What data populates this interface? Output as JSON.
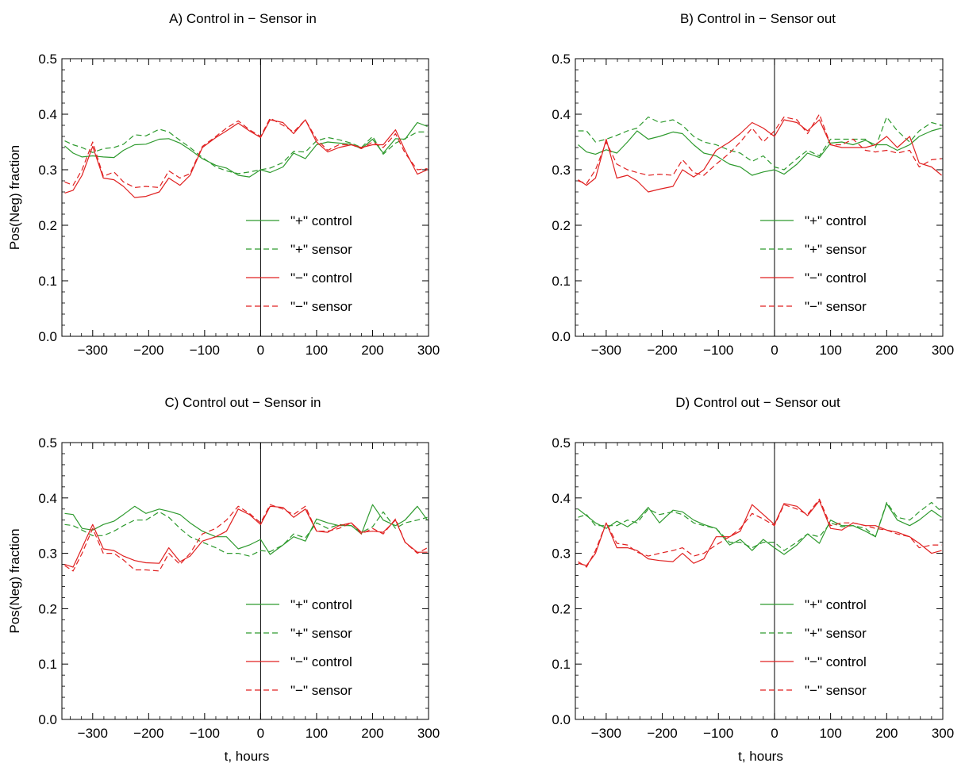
{
  "chart_data": [
    {
      "type": "line",
      "title": "A) Control in − Sensor in",
      "xlabel": "",
      "ylabel": "Pos(Neg) fraction",
      "xlim": [
        -355,
        300
      ],
      "ylim": [
        0,
        0.5
      ],
      "xticks": [
        -300,
        -200,
        -100,
        0,
        100,
        200,
        300
      ],
      "xtick_labels": [
        "−300",
        "−200",
        "−100",
        "0",
        "100",
        "200",
        "300"
      ],
      "yticks": [
        0,
        0.1,
        0.2,
        0.3,
        0.4,
        0.5
      ],
      "ytick_labels": [
        "0.0",
        "0.1",
        "0.2",
        "0.3",
        "0.4",
        "0.5"
      ],
      "vline_x": 0,
      "legend_position": "lower-right",
      "x": [
        -350,
        -335,
        -319,
        -300,
        -281,
        -262,
        -245,
        -225,
        -205,
        -181,
        -164,
        -144,
        -126,
        -104,
        -80,
        -61,
        -40,
        -20,
        0,
        17,
        40,
        59,
        80,
        100,
        120,
        140,
        162,
        180,
        200,
        219,
        241,
        258,
        280,
        298
      ],
      "series": [
        {
          "name": "\"+\" control",
          "color": "#2e9a2e",
          "dash": "solid",
          "values": [
            0.343,
            0.33,
            0.323,
            0.325,
            0.323,
            0.322,
            0.335,
            0.345,
            0.346,
            0.355,
            0.356,
            0.348,
            0.336,
            0.32,
            0.308,
            0.303,
            0.29,
            0.287,
            0.3,
            0.295,
            0.305,
            0.33,
            0.32,
            0.345,
            0.35,
            0.348,
            0.346,
            0.338,
            0.355,
            0.33,
            0.356,
            0.355,
            0.385,
            0.378
          ]
        },
        {
          "name": "\"+\" sensor",
          "color": "#2e9a2e",
          "dash": "dashed",
          "values": [
            0.352,
            0.345,
            0.34,
            0.331,
            0.338,
            0.34,
            0.346,
            0.363,
            0.361,
            0.373,
            0.368,
            0.353,
            0.34,
            0.322,
            0.305,
            0.298,
            0.293,
            0.296,
            0.3,
            0.303,
            0.313,
            0.333,
            0.332,
            0.352,
            0.358,
            0.354,
            0.348,
            0.34,
            0.36,
            0.328,
            0.348,
            0.356,
            0.368,
            0.368
          ]
        },
        {
          "name": "\"−\" control",
          "color": "#e02020",
          "dash": "solid",
          "values": [
            0.258,
            0.263,
            0.29,
            0.342,
            0.285,
            0.282,
            0.27,
            0.25,
            0.252,
            0.26,
            0.285,
            0.272,
            0.29,
            0.34,
            0.358,
            0.37,
            0.384,
            0.37,
            0.358,
            0.39,
            0.385,
            0.365,
            0.39,
            0.35,
            0.332,
            0.34,
            0.345,
            0.34,
            0.345,
            0.345,
            0.372,
            0.335,
            0.292,
            0.3
          ]
        },
        {
          "name": "\"−\" sensor",
          "color": "#e02020",
          "dash": "dashed",
          "values": [
            0.278,
            0.272,
            0.3,
            0.35,
            0.288,
            0.296,
            0.278,
            0.268,
            0.27,
            0.268,
            0.298,
            0.285,
            0.293,
            0.342,
            0.36,
            0.375,
            0.388,
            0.372,
            0.36,
            0.393,
            0.38,
            0.368,
            0.39,
            0.355,
            0.335,
            0.345,
            0.345,
            0.338,
            0.35,
            0.34,
            0.365,
            0.33,
            0.3,
            0.302
          ]
        }
      ]
    },
    {
      "type": "line",
      "title": "B) Control in − Sensor out",
      "xlabel": "",
      "ylabel": "",
      "xlim": [
        -355,
        300
      ],
      "ylim": [
        0,
        0.5
      ],
      "xticks": [
        -300,
        -200,
        -100,
        0,
        100,
        200,
        300
      ],
      "xtick_labels": [
        "−300",
        "−200",
        "−100",
        "0",
        "100",
        "200",
        "300"
      ],
      "yticks": [
        0,
        0.1,
        0.2,
        0.3,
        0.4,
        0.5
      ],
      "ytick_labels": [
        "0.0",
        "0.1",
        "0.2",
        "0.3",
        "0.4",
        "0.5"
      ],
      "vline_x": 0,
      "legend_position": "lower-right",
      "x": [
        -350,
        -335,
        -319,
        -300,
        -281,
        -262,
        -245,
        -225,
        -205,
        -181,
        -164,
        -144,
        -126,
        -104,
        -80,
        -61,
        -40,
        -20,
        0,
        17,
        40,
        59,
        80,
        100,
        120,
        140,
        162,
        180,
        200,
        219,
        241,
        258,
        280,
        298
      ],
      "series": [
        {
          "name": "\"+\" control",
          "color": "#2e9a2e",
          "dash": "solid",
          "values": [
            0.345,
            0.332,
            0.328,
            0.336,
            0.33,
            0.35,
            0.37,
            0.355,
            0.36,
            0.368,
            0.365,
            0.345,
            0.33,
            0.325,
            0.31,
            0.305,
            0.29,
            0.296,
            0.3,
            0.292,
            0.31,
            0.33,
            0.322,
            0.348,
            0.35,
            0.345,
            0.353,
            0.345,
            0.345,
            0.335,
            0.345,
            0.36,
            0.37,
            0.375
          ]
        },
        {
          "name": "\"+\" sensor",
          "color": "#2e9a2e",
          "dash": "dashed",
          "values": [
            0.37,
            0.37,
            0.35,
            0.355,
            0.362,
            0.37,
            0.375,
            0.395,
            0.385,
            0.39,
            0.38,
            0.36,
            0.35,
            0.345,
            0.335,
            0.33,
            0.315,
            0.325,
            0.305,
            0.3,
            0.32,
            0.335,
            0.325,
            0.355,
            0.355,
            0.355,
            0.355,
            0.34,
            0.395,
            0.37,
            0.35,
            0.37,
            0.385,
            0.38
          ]
        },
        {
          "name": "\"−\" control",
          "color": "#e02020",
          "dash": "solid",
          "values": [
            0.282,
            0.272,
            0.285,
            0.355,
            0.285,
            0.29,
            0.28,
            0.26,
            0.265,
            0.27,
            0.3,
            0.287,
            0.3,
            0.335,
            0.35,
            0.365,
            0.385,
            0.375,
            0.36,
            0.39,
            0.385,
            0.37,
            0.39,
            0.345,
            0.34,
            0.34,
            0.34,
            0.345,
            0.36,
            0.34,
            0.36,
            0.312,
            0.305,
            0.29
          ]
        },
        {
          "name": "\"−\" sensor",
          "color": "#e02020",
          "dash": "dashed",
          "values": [
            0.28,
            0.275,
            0.3,
            0.35,
            0.31,
            0.3,
            0.295,
            0.29,
            0.292,
            0.29,
            0.318,
            0.295,
            0.29,
            0.31,
            0.33,
            0.35,
            0.375,
            0.35,
            0.37,
            0.395,
            0.39,
            0.365,
            0.4,
            0.345,
            0.345,
            0.355,
            0.335,
            0.332,
            0.335,
            0.33,
            0.335,
            0.305,
            0.318,
            0.32
          ]
        }
      ]
    },
    {
      "type": "line",
      "title": "C) Control out − Sensor in",
      "xlabel": "t, hours",
      "ylabel": "Pos(Neg) fraction",
      "xlim": [
        -355,
        300
      ],
      "ylim": [
        0,
        0.5
      ],
      "xticks": [
        -300,
        -200,
        -100,
        0,
        100,
        200,
        300
      ],
      "xtick_labels": [
        "−300",
        "−200",
        "−100",
        "0",
        "100",
        "200",
        "300"
      ],
      "yticks": [
        0,
        0.1,
        0.2,
        0.3,
        0.4,
        0.5
      ],
      "ytick_labels": [
        "0.0",
        "0.1",
        "0.2",
        "0.3",
        "0.4",
        "0.5"
      ],
      "vline_x": 0,
      "legend_position": "lower-right",
      "x": [
        -350,
        -335,
        -319,
        -300,
        -281,
        -262,
        -245,
        -225,
        -205,
        -181,
        -164,
        -144,
        -126,
        -104,
        -80,
        -61,
        -40,
        -20,
        0,
        17,
        40,
        59,
        80,
        100,
        120,
        140,
        162,
        180,
        200,
        219,
        241,
        258,
        280,
        298
      ],
      "series": [
        {
          "name": "\"+\" control",
          "color": "#2e9a2e",
          "dash": "solid",
          "values": [
            0.372,
            0.37,
            0.345,
            0.342,
            0.352,
            0.358,
            0.37,
            0.385,
            0.372,
            0.38,
            0.376,
            0.37,
            0.355,
            0.34,
            0.33,
            0.33,
            0.308,
            0.315,
            0.325,
            0.298,
            0.315,
            0.33,
            0.322,
            0.362,
            0.355,
            0.35,
            0.35,
            0.335,
            0.388,
            0.36,
            0.35,
            0.36,
            0.385,
            0.36
          ]
        },
        {
          "name": "\"+\" sensor",
          "color": "#2e9a2e",
          "dash": "dashed",
          "values": [
            0.352,
            0.35,
            0.342,
            0.332,
            0.332,
            0.34,
            0.35,
            0.36,
            0.36,
            0.375,
            0.365,
            0.345,
            0.33,
            0.32,
            0.31,
            0.3,
            0.3,
            0.295,
            0.305,
            0.303,
            0.315,
            0.335,
            0.328,
            0.355,
            0.345,
            0.352,
            0.35,
            0.338,
            0.348,
            0.375,
            0.345,
            0.355,
            0.36,
            0.365
          ]
        },
        {
          "name": "\"−\" control",
          "color": "#e02020",
          "dash": "solid",
          "values": [
            0.28,
            0.275,
            0.31,
            0.352,
            0.308,
            0.305,
            0.295,
            0.287,
            0.283,
            0.282,
            0.31,
            0.285,
            0.295,
            0.322,
            0.33,
            0.34,
            0.38,
            0.37,
            0.352,
            0.385,
            0.383,
            0.365,
            0.38,
            0.34,
            0.338,
            0.35,
            0.355,
            0.338,
            0.34,
            0.338,
            0.36,
            0.32,
            0.302,
            0.302
          ]
        },
        {
          "name": "\"−\" sensor",
          "color": "#e02020",
          "dash": "dashed",
          "values": [
            0.278,
            0.268,
            0.3,
            0.345,
            0.3,
            0.3,
            0.288,
            0.27,
            0.27,
            0.268,
            0.3,
            0.28,
            0.3,
            0.335,
            0.345,
            0.36,
            0.385,
            0.372,
            0.355,
            0.388,
            0.38,
            0.37,
            0.385,
            0.34,
            0.34,
            0.345,
            0.355,
            0.335,
            0.345,
            0.335,
            0.362,
            0.32,
            0.3,
            0.31
          ]
        }
      ]
    },
    {
      "type": "line",
      "title": "D) Control out − Sensor out",
      "xlabel": "t, hours",
      "ylabel": "",
      "xlim": [
        -355,
        300
      ],
      "ylim": [
        0,
        0.5
      ],
      "xticks": [
        -300,
        -200,
        -100,
        0,
        100,
        200,
        300
      ],
      "xtick_labels": [
        "−300",
        "−200",
        "−100",
        "0",
        "100",
        "200",
        "300"
      ],
      "yticks": [
        0,
        0.1,
        0.2,
        0.3,
        0.4,
        0.5
      ],
      "ytick_labels": [
        "0.0",
        "0.1",
        "0.2",
        "0.3",
        "0.4",
        "0.5"
      ],
      "vline_x": 0,
      "legend_position": "lower-right",
      "x": [
        -350,
        -335,
        -319,
        -300,
        -281,
        -262,
        -245,
        -225,
        -205,
        -181,
        -164,
        -144,
        -126,
        -104,
        -80,
        -61,
        -40,
        -20,
        0,
        17,
        40,
        59,
        80,
        100,
        120,
        140,
        162,
        180,
        200,
        219,
        241,
        258,
        280,
        298
      ],
      "series": [
        {
          "name": "\"+\" control",
          "color": "#2e9a2e",
          "dash": "solid",
          "values": [
            0.38,
            0.368,
            0.355,
            0.345,
            0.358,
            0.348,
            0.36,
            0.383,
            0.355,
            0.378,
            0.375,
            0.36,
            0.352,
            0.345,
            0.315,
            0.325,
            0.305,
            0.325,
            0.31,
            0.298,
            0.315,
            0.335,
            0.318,
            0.36,
            0.35,
            0.35,
            0.34,
            0.33,
            0.39,
            0.36,
            0.35,
            0.36,
            0.378,
            0.365
          ]
        },
        {
          "name": "\"+\" sensor",
          "color": "#2e9a2e",
          "dash": "dashed",
          "values": [
            0.365,
            0.37,
            0.35,
            0.35,
            0.35,
            0.36,
            0.355,
            0.38,
            0.37,
            0.375,
            0.37,
            0.355,
            0.35,
            0.345,
            0.32,
            0.32,
            0.31,
            0.32,
            0.32,
            0.305,
            0.32,
            0.335,
            0.33,
            0.355,
            0.348,
            0.35,
            0.345,
            0.33,
            0.392,
            0.365,
            0.36,
            0.375,
            0.392,
            0.375
          ]
        },
        {
          "name": "\"−\" control",
          "color": "#e02020",
          "dash": "solid",
          "values": [
            0.282,
            0.278,
            0.3,
            0.355,
            0.31,
            0.31,
            0.305,
            0.29,
            0.287,
            0.285,
            0.3,
            0.282,
            0.29,
            0.33,
            0.33,
            0.34,
            0.388,
            0.37,
            0.352,
            0.39,
            0.385,
            0.368,
            0.395,
            0.345,
            0.342,
            0.355,
            0.35,
            0.35,
            0.342,
            0.338,
            0.33,
            0.318,
            0.3,
            0.305
          ]
        },
        {
          "name": "\"−\" sensor",
          "color": "#e02020",
          "dash": "dashed",
          "values": [
            0.285,
            0.275,
            0.305,
            0.355,
            0.318,
            0.315,
            0.302,
            0.295,
            0.3,
            0.305,
            0.31,
            0.295,
            0.3,
            0.315,
            0.33,
            0.345,
            0.372,
            0.362,
            0.35,
            0.388,
            0.38,
            0.37,
            0.398,
            0.35,
            0.355,
            0.355,
            0.35,
            0.345,
            0.342,
            0.335,
            0.33,
            0.31,
            0.315,
            0.315
          ]
        }
      ]
    }
  ]
}
